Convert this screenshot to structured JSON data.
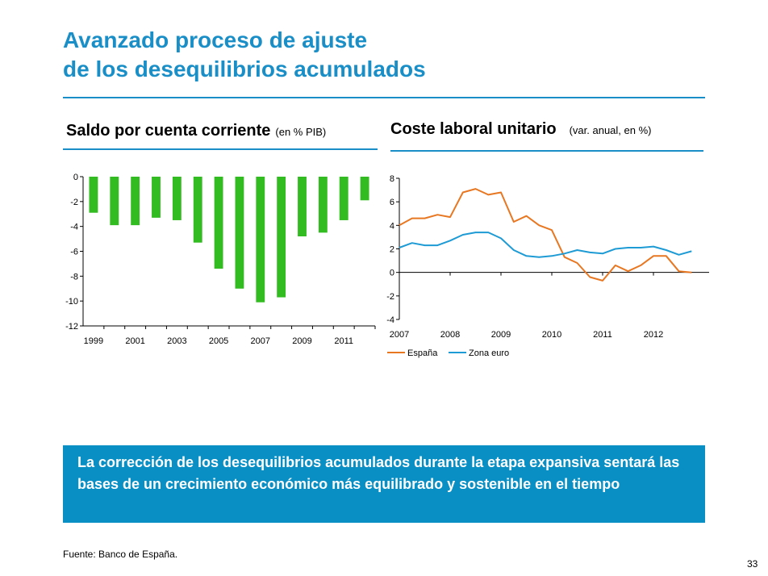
{
  "title": {
    "line1": "Avanzado proceso de ajuste",
    "line2": "de los desequilibrios acumulados"
  },
  "colors": {
    "accent": "#1a8fc7",
    "callout_bg": "#0a8fc4",
    "bar_green": "#33bb22",
    "espana_orange": "#e87722",
    "zona_euro_blue": "#1e9bd4"
  },
  "chart_data": [
    {
      "type": "bar",
      "title": "Saldo por cuenta corriente",
      "unit": "(en % PIB)",
      "categories": [
        "1999",
        "2000",
        "2001",
        "2002",
        "2003",
        "2004",
        "2005",
        "2006",
        "2007",
        "2008",
        "2009",
        "2010",
        "2011",
        "2012"
      ],
      "tick_labels": [
        "1999",
        "2001",
        "2003",
        "2005",
        "2007",
        "2009",
        "2011"
      ],
      "values": [
        -2.9,
        -3.9,
        -3.9,
        -3.3,
        -3.5,
        -5.3,
        -7.4,
        -9.0,
        -10.1,
        -9.7,
        -4.8,
        -4.5,
        -3.5,
        -1.9
      ],
      "ylim": [
        -12,
        0
      ],
      "yticks": [
        0,
        -2,
        -4,
        -6,
        -8,
        -10,
        -12
      ],
      "color": "#33bb22",
      "grid": false
    },
    {
      "type": "line",
      "title": "Coste laboral unitario",
      "unit": "(var. anual, en %)",
      "x": [
        2007.0,
        2007.25,
        2007.5,
        2007.75,
        2008.0,
        2008.25,
        2008.5,
        2008.75,
        2009.0,
        2009.25,
        2009.5,
        2009.75,
        2010.0,
        2010.25,
        2010.5,
        2010.75,
        2011.0,
        2011.25,
        2011.5,
        2011.75,
        2012.0,
        2012.25,
        2012.5,
        2012.75,
        2013.0
      ],
      "x_tick_labels": [
        "2007",
        "2008",
        "2009",
        "2010",
        "2011",
        "2012"
      ],
      "ylim": [
        -4,
        8
      ],
      "yticks": [
        8,
        6,
        4,
        2,
        0,
        -2,
        -4
      ],
      "legend_position": "bottom-left",
      "grid": false,
      "series": [
        {
          "name": "España",
          "color": "#e87722",
          "values": [
            4.0,
            4.6,
            4.6,
            4.9,
            4.7,
            6.8,
            7.1,
            6.6,
            6.8,
            4.3,
            4.8,
            4.0,
            3.6,
            1.3,
            0.8,
            -0.4,
            -0.7,
            0.6,
            0.1,
            0.6,
            1.4,
            1.4,
            0.1,
            0.0,
            null
          ]
        },
        {
          "name": "Zona euro",
          "color": "#1e9bd4",
          "values": [
            2.1,
            2.5,
            2.3,
            2.3,
            2.7,
            3.2,
            3.4,
            3.4,
            2.9,
            1.9,
            1.4,
            1.3,
            1.4,
            1.6,
            1.9,
            1.7,
            1.6,
            2.0,
            2.1,
            2.1,
            2.2,
            1.9,
            1.5,
            1.8,
            null
          ]
        }
      ]
    }
  ],
  "callout": {
    "text": "La corrección de los desequilibrios acumulados durante la etapa expansiva sentará las bases de un crecimiento económico más equilibrado y sostenible en el tiempo"
  },
  "footer": {
    "source": "Fuente: Banco de España.",
    "page_number": "33"
  }
}
